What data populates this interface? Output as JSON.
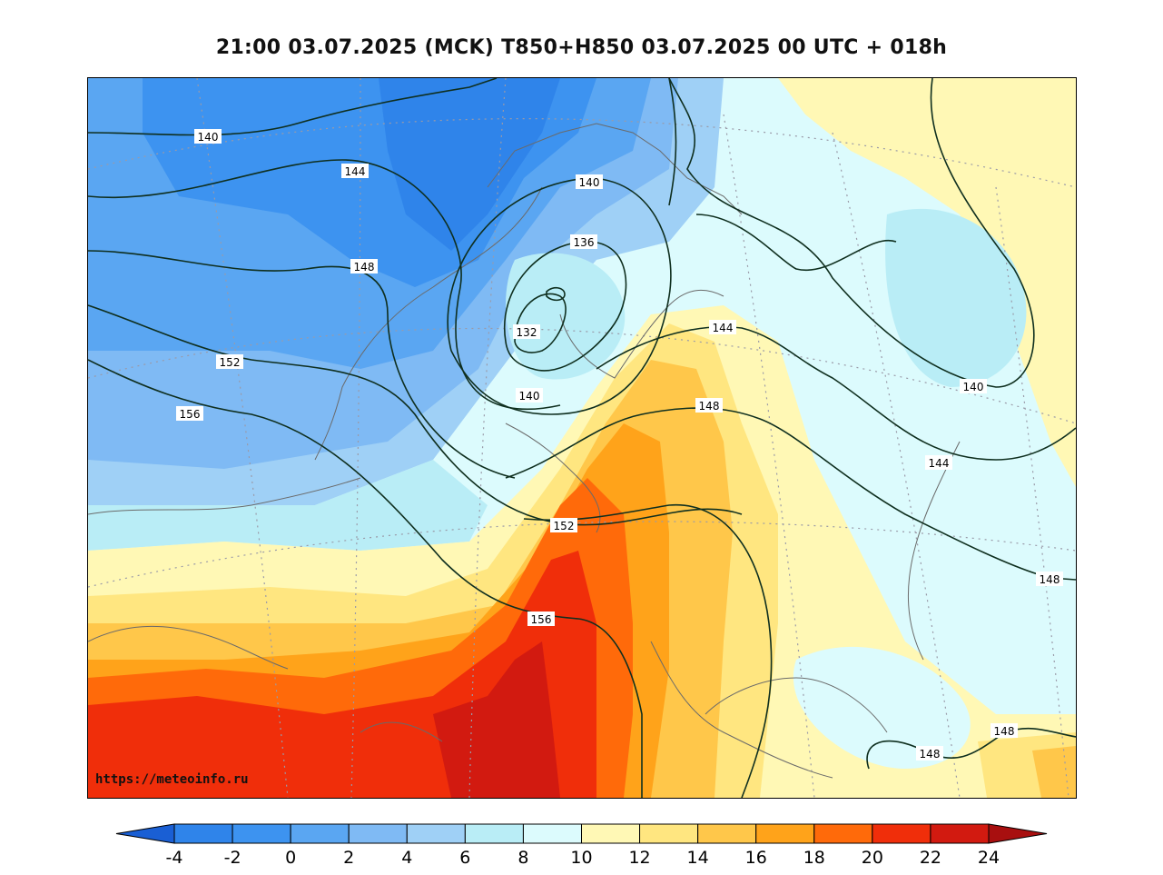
{
  "title": "21:00 03.07.2025 (MCK) T850+H850 03.07.2025 00 UTC + 018h",
  "watermark": "https://meteoinfo.ru",
  "isolines": [
    {
      "id": "iso-140-nw",
      "label": "140"
    },
    {
      "id": "iso-144-nw",
      "label": "144"
    },
    {
      "id": "iso-148-nw",
      "label": "148"
    },
    {
      "id": "iso-152-w",
      "label": "152"
    },
    {
      "id": "iso-156-w",
      "label": "156"
    },
    {
      "id": "iso-140-low",
      "label": "140"
    },
    {
      "id": "iso-136",
      "label": "136"
    },
    {
      "id": "iso-132",
      "label": "132"
    },
    {
      "id": "iso-140-low-s",
      "label": "140"
    },
    {
      "id": "iso-144-c",
      "label": "144"
    },
    {
      "id": "iso-148-c",
      "label": "148"
    },
    {
      "id": "iso-152-c",
      "label": "152"
    },
    {
      "id": "iso-156-c",
      "label": "156"
    },
    {
      "id": "iso-140-e",
      "label": "140"
    },
    {
      "id": "iso-144-e",
      "label": "144"
    },
    {
      "id": "iso-148-e",
      "label": "148"
    },
    {
      "id": "iso-148-se1",
      "label": "148"
    },
    {
      "id": "iso-148-se2",
      "label": "148"
    }
  ],
  "colorbar": {
    "ticks": [
      "-4",
      "-2",
      "0",
      "2",
      "4",
      "6",
      "8",
      "10",
      "12",
      "14",
      "16",
      "18",
      "20",
      "22",
      "24"
    ],
    "colors": [
      "#1f6fe0",
      "#2f84ea",
      "#3d93f0",
      "#5aa6f2",
      "#7fbaf4",
      "#9fd0f6",
      "#b9edf6",
      "#dcfbfd",
      "#fff8b5",
      "#ffe680",
      "#ffc74a",
      "#ffa31a",
      "#ff6a0a",
      "#f02e0a",
      "#d21a10"
    ],
    "under_color": "#1a5fd4",
    "over_color": "#a80f0f"
  }
}
